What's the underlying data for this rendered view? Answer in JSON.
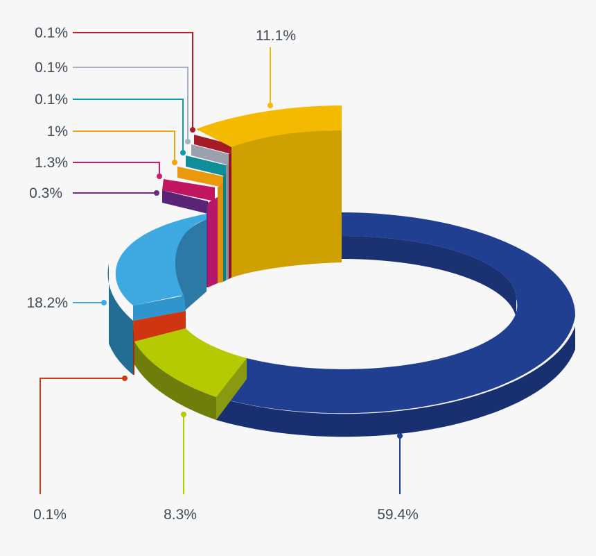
{
  "chart_data": {
    "type": "pie",
    "style": "3d-donut",
    "title": "",
    "legend": "none",
    "slices": [
      {
        "label": "59.4%",
        "value": 59.4,
        "color": "#203f92"
      },
      {
        "label": "8.3%",
        "value": 8.3,
        "color": "#b5cb00"
      },
      {
        "label": "0.1%",
        "value": 0.1,
        "color": "#d33a14"
      },
      {
        "label": "18.2%",
        "value": 18.2,
        "color": "#3ea9e1"
      },
      {
        "label": "0.3%",
        "value": 0.3,
        "color": "#6b2b86"
      },
      {
        "label": "1.3%",
        "value": 1.3,
        "color": "#d3176f"
      },
      {
        "label": "1%",
        "value": 1.0,
        "color": "#f2a20f"
      },
      {
        "label": "0.1%",
        "value": 0.1,
        "color": "#0f9aa7"
      },
      {
        "label": "0.1%",
        "value": 0.1,
        "color": "#a9b0bd"
      },
      {
        "label": "0.1%",
        "value": 0.1,
        "color": "#b01e2a"
      },
      {
        "label": "11.1%",
        "value": 11.1,
        "color": "#f4ba00"
      }
    ]
  }
}
